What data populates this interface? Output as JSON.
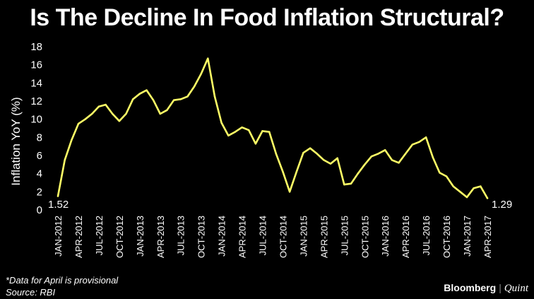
{
  "title": "Is The Decline In Food Inflation Structural?",
  "footnote": "*Data for April is provisional",
  "source": "Source: RBI",
  "brand": {
    "name": "Bloomberg",
    "separator": "|",
    "partner": "Quint"
  },
  "colors": {
    "background": "#000000",
    "line": "#ffff66",
    "text": "#ffffff"
  },
  "chart_data": {
    "type": "line",
    "title": "Is The Decline In Food Inflation Structural?",
    "ylabel": "Inflation YoY (%)",
    "xlabel": "",
    "ylim": [
      0,
      18
    ],
    "yticks": [
      0,
      2,
      4,
      6,
      8,
      10,
      12,
      14,
      16,
      18
    ],
    "x_tick_labels": [
      "JAN-2012",
      "APR-2012",
      "JUL-2012",
      "OCT-2012",
      "JAN-2013",
      "APR-2013",
      "JUL-2013",
      "OCT-2013",
      "JAN-2014",
      "APR-2014",
      "JUL-2014",
      "OCT-2014",
      "JAN-2015",
      "APR-2015",
      "JUL-2015",
      "OCT-2015",
      "JAN-2016",
      "APR-2016",
      "JUL-2016",
      "OCT-2016",
      "JAN-2017",
      "APR-2017"
    ],
    "grid": false,
    "first_label": "1.52",
    "last_label": "1.29",
    "series": [
      {
        "values": [
          1.52,
          5.5,
          7.7,
          9.5,
          10.0,
          10.6,
          11.4,
          11.6,
          10.6,
          9.8,
          10.6,
          12.2,
          12.8,
          13.2,
          12.1,
          10.6,
          11.0,
          12.1,
          12.2,
          12.5,
          13.6,
          15.0,
          16.7,
          12.5,
          9.6,
          8.2,
          8.6,
          9.1,
          8.8,
          7.3,
          8.7,
          8.6,
          6.2,
          4.2,
          2.0,
          4.2,
          6.3,
          6.8,
          6.2,
          5.5,
          5.1,
          5.7,
          2.8,
          2.9,
          4.0,
          5.0,
          5.9,
          6.2,
          6.6,
          5.5,
          5.2,
          6.2,
          7.2,
          7.5,
          8.0,
          5.8,
          4.1,
          3.7,
          2.6,
          2.0,
          1.4,
          2.4,
          2.6,
          1.29
        ]
      }
    ]
  }
}
